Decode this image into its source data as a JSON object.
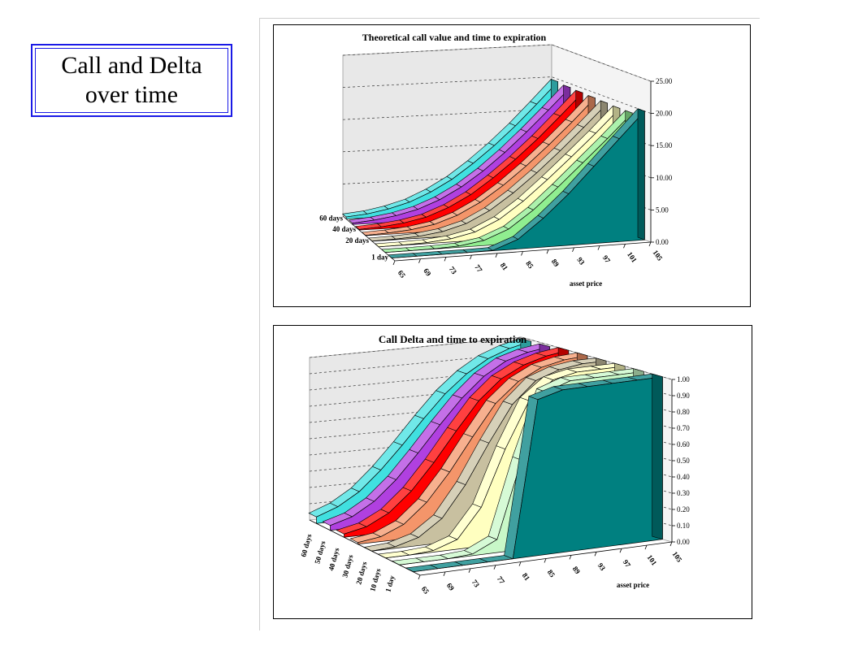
{
  "slide": {
    "title": "Call and Delta over time"
  },
  "chart_data": [
    {
      "type": "area",
      "title": "Theoretical call value and time to expiration",
      "xlabel": "asset price",
      "ylabel": "",
      "categories": [
        "65",
        "69",
        "73",
        "77",
        "81",
        "85",
        "89",
        "93",
        "97",
        "101",
        "105"
      ],
      "ylim": [
        0,
        25
      ],
      "yticks": [
        "0.00",
        "5.00",
        "10.00",
        "15.00",
        "20.00",
        "25.00"
      ],
      "depth_labels": [
        "60 days",
        "40 days",
        "20 days",
        "1 day"
      ],
      "series": [
        {
          "values": [
            0.3,
            0.6,
            1.2,
            2.1,
            3.5,
            5.3,
            7.6,
            10.2,
            13.1,
            16.3,
            19.6
          ],
          "color": "#40e0e0"
        },
        {
          "values": [
            0.2,
            0.5,
            1.0,
            1.8,
            3.1,
            4.9,
            7.2,
            9.9,
            12.9,
            16.1,
            19.4
          ],
          "color": "#b040e0"
        },
        {
          "values": [
            0.1,
            0.3,
            0.7,
            1.4,
            2.7,
            4.5,
            6.9,
            9.6,
            12.6,
            15.9,
            19.3
          ],
          "color": "#ff0000"
        },
        {
          "values": [
            0.05,
            0.2,
            0.5,
            1.1,
            2.3,
            4.1,
            6.5,
            9.3,
            12.4,
            15.7,
            19.2
          ],
          "color": "#f4956a"
        },
        {
          "values": [
            0.02,
            0.1,
            0.3,
            0.8,
            1.8,
            3.6,
            6.1,
            9.0,
            12.2,
            15.6,
            19.1
          ],
          "color": "#c8c0a0"
        },
        {
          "values": [
            0.0,
            0.03,
            0.15,
            0.5,
            1.3,
            3.0,
            5.6,
            8.7,
            12.0,
            15.4,
            19.0
          ],
          "color": "#ffffc0"
        },
        {
          "values": [
            0.0,
            0.0,
            0.04,
            0.2,
            0.8,
            2.3,
            5.0,
            8.3,
            11.8,
            15.3,
            19.0
          ],
          "color": "#90ee90"
        },
        {
          "values": [
            0.0,
            0.0,
            0.0,
            0.0,
            0.05,
            1.5,
            4.5,
            8.0,
            12.0,
            16.0,
            20.0
          ],
          "color": "#008080"
        }
      ]
    },
    {
      "type": "area",
      "title": "Call Delta and time to expiration",
      "xlabel": "asset price",
      "ylabel": "",
      "categories": [
        "65",
        "69",
        "73",
        "77",
        "81",
        "85",
        "89",
        "93",
        "97",
        "101",
        "105"
      ],
      "ylim": [
        0,
        1
      ],
      "yticks": [
        "0.00",
        "0.10",
        "0.20",
        "0.30",
        "0.40",
        "0.50",
        "0.60",
        "0.70",
        "0.80",
        "0.90",
        "1.00"
      ],
      "depth_labels": [
        "60 days",
        "50 days",
        "40 days",
        "30 days",
        "20 days",
        "10 days",
        "1 day"
      ],
      "series": [
        {
          "values": [
            0.04,
            0.09,
            0.17,
            0.29,
            0.43,
            0.58,
            0.72,
            0.83,
            0.91,
            0.96,
            0.99
          ],
          "color": "#40e0e0"
        },
        {
          "values": [
            0.03,
            0.07,
            0.15,
            0.27,
            0.42,
            0.58,
            0.73,
            0.85,
            0.93,
            0.97,
            0.99
          ],
          "color": "#b040e0"
        },
        {
          "values": [
            0.02,
            0.05,
            0.12,
            0.24,
            0.4,
            0.58,
            0.75,
            0.87,
            0.94,
            0.98,
            1.0
          ],
          "color": "#ff0000"
        },
        {
          "values": [
            0.01,
            0.03,
            0.09,
            0.21,
            0.38,
            0.58,
            0.77,
            0.89,
            0.96,
            0.99,
            1.0
          ],
          "color": "#f4956a"
        },
        {
          "values": [
            0.0,
            0.01,
            0.05,
            0.15,
            0.34,
            0.58,
            0.8,
            0.93,
            0.98,
            1.0,
            1.0
          ],
          "color": "#c8c0a0"
        },
        {
          "values": [
            0.0,
            0.0,
            0.01,
            0.06,
            0.24,
            0.58,
            0.86,
            0.97,
            1.0,
            1.0,
            1.0
          ],
          "color": "#ffffc0"
        },
        {
          "values": [
            0.0,
            0.0,
            0.0,
            0.01,
            0.08,
            0.55,
            0.95,
            1.0,
            1.0,
            1.0,
            1.0
          ],
          "color": "#c8f8c8"
        },
        {
          "values": [
            0.0,
            0.0,
            0.0,
            0.0,
            0.0,
            0.96,
            1.0,
            1.0,
            1.0,
            1.0,
            1.0
          ],
          "color": "#008080"
        }
      ]
    }
  ]
}
